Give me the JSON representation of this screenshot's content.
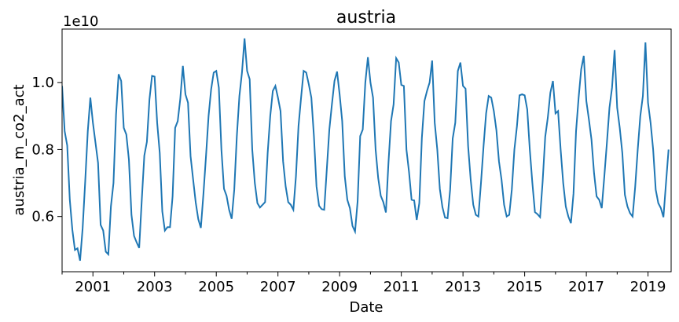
{
  "chart_data": {
    "type": "line",
    "title": "austria",
    "xlabel": "Date",
    "ylabel": "austria_m_co2_act",
    "y_offset_label": "1e10",
    "y_scale_multiplier": 10000000000,
    "xlim": [
      "2000-01",
      "2019-10"
    ],
    "ylim": [
      0.435,
      1.16
    ],
    "grid": false,
    "line_color": "#1f77b4",
    "x_ticks": [
      "2001",
      "2003",
      "2005",
      "2007",
      "2009",
      "2011",
      "2013",
      "2015",
      "2017",
      "2019"
    ],
    "y_ticks": [
      0.6,
      0.8,
      1.0
    ],
    "y_tick_labels": [
      "0.6",
      "0.8",
      "1.0"
    ],
    "series": [
      {
        "start": "2000-01",
        "frequency": "monthly",
        "values": [
          0.99,
          0.855,
          0.812,
          0.65,
          0.56,
          0.5,
          0.505,
          0.468,
          0.565,
          0.705,
          0.855,
          0.955,
          0.88,
          0.82,
          0.76,
          0.575,
          0.558,
          0.495,
          0.487,
          0.63,
          0.7,
          0.905,
          1.025,
          1.005,
          0.865,
          0.845,
          0.77,
          0.605,
          0.542,
          0.523,
          0.506,
          0.648,
          0.782,
          0.823,
          0.95,
          1.02,
          1.018,
          0.88,
          0.79,
          0.615,
          0.558,
          0.568,
          0.568,
          0.66,
          0.865,
          0.885,
          0.952,
          1.05,
          0.965,
          0.94,
          0.78,
          0.71,
          0.642,
          0.592,
          0.566,
          0.667,
          0.78,
          0.9,
          0.98,
          1.03,
          1.035,
          0.985,
          0.8,
          0.683,
          0.662,
          0.62,
          0.593,
          0.68,
          0.84,
          0.96,
          1.03,
          1.132,
          1.035,
          1.01,
          0.8,
          0.7,
          0.64,
          0.627,
          0.635,
          0.643,
          0.79,
          0.9,
          0.975,
          0.99,
          0.955,
          0.915,
          0.765,
          0.69,
          0.643,
          0.635,
          0.62,
          0.72,
          0.87,
          0.955,
          1.035,
          1.03,
          0.995,
          0.955,
          0.84,
          0.69,
          0.632,
          0.622,
          0.62,
          0.74,
          0.86,
          0.935,
          1.005,
          1.033,
          0.965,
          0.885,
          0.72,
          0.65,
          0.625,
          0.572,
          0.555,
          0.645,
          0.84,
          0.86,
          1.0,
          1.076,
          1.0,
          0.955,
          0.8,
          0.715,
          0.662,
          0.643,
          0.612,
          0.76,
          0.885,
          0.935,
          1.073,
          1.06,
          0.993,
          0.99,
          0.8,
          0.733,
          0.65,
          0.648,
          0.59,
          0.64,
          0.835,
          0.945,
          0.975,
          1.0,
          1.066,
          0.88,
          0.8,
          0.682,
          0.628,
          0.597,
          0.595,
          0.68,
          0.833,
          0.88,
          1.035,
          1.06,
          0.99,
          0.982,
          0.81,
          0.71,
          0.635,
          0.605,
          0.6,
          0.7,
          0.81,
          0.908,
          0.96,
          0.955,
          0.915,
          0.858,
          0.765,
          0.71,
          0.635,
          0.6,
          0.605,
          0.68,
          0.8,
          0.87,
          0.962,
          0.965,
          0.962,
          0.92,
          0.8,
          0.7,
          0.613,
          0.607,
          0.598,
          0.705,
          0.838,
          0.895,
          0.97,
          1.005,
          0.908,
          0.915,
          0.8,
          0.7,
          0.63,
          0.6,
          0.58,
          0.668,
          0.855,
          0.955,
          1.04,
          1.08,
          0.945,
          0.89,
          0.83,
          0.73,
          0.66,
          0.65,
          0.625,
          0.72,
          0.82,
          0.925,
          0.985,
          1.097,
          0.925,
          0.865,
          0.79,
          0.665,
          0.63,
          0.61,
          0.6,
          0.688,
          0.8,
          0.9,
          0.96,
          1.12,
          0.94,
          0.88,
          0.8,
          0.68,
          0.64,
          0.625,
          0.598,
          0.7,
          0.8
        ]
      }
    ]
  }
}
